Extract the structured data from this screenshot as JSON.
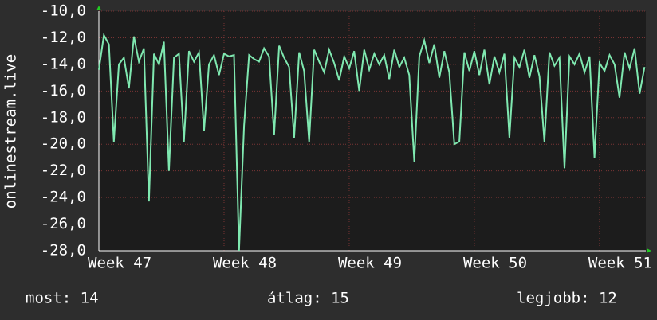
{
  "chart_data": {
    "type": "line",
    "y_label": "onlinestream.live",
    "x": [
      47,
      47.04,
      47.08,
      47.12,
      47.16,
      47.2,
      47.24,
      47.28,
      47.32,
      47.36,
      47.4,
      47.44,
      47.48,
      47.52,
      47.56,
      47.6,
      47.64,
      47.68,
      47.72,
      47.76,
      47.8,
      47.84,
      47.88,
      47.92,
      47.96,
      48,
      48.04,
      48.08,
      48.12,
      48.16,
      48.2,
      48.24,
      48.28,
      48.32,
      48.36,
      48.4,
      48.44,
      48.48,
      48.52,
      48.56,
      48.6,
      48.64,
      48.68,
      48.72,
      48.76,
      48.8,
      48.84,
      48.88,
      48.92,
      48.96,
      49,
      49.04,
      49.08,
      49.12,
      49.16,
      49.2,
      49.24,
      49.28,
      49.32,
      49.36,
      49.4,
      49.44,
      49.48,
      49.52,
      49.56,
      49.6,
      49.64,
      49.68,
      49.72,
      49.76,
      49.8,
      49.84,
      49.88,
      49.92,
      49.96,
      50,
      50.04,
      50.08,
      50.12,
      50.16,
      50.2,
      50.24,
      50.28,
      50.32,
      50.36,
      50.4,
      50.44,
      50.48,
      50.52,
      50.56,
      50.6,
      50.64,
      50.68,
      50.72,
      50.76,
      50.8,
      50.84,
      50.88,
      50.92,
      50.96,
      51,
      51.04,
      51.08,
      51.12,
      51.16,
      51.2,
      51.24,
      51.28,
      51.32,
      51.36
    ],
    "series": [
      {
        "color": "#7fe8b0",
        "values": [
          -14.4,
          -11.8,
          -12.5,
          -19.8,
          -14.0,
          -13.5,
          -15.8,
          -11.9,
          -13.8,
          -12.8,
          -24.3,
          -13.2,
          -14.0,
          -12.3,
          -22.0,
          -13.5,
          -13.2,
          -19.8,
          -13.0,
          -13.8,
          -13.1,
          -19.0,
          -14.0,
          -13.3,
          -14.8,
          -13.2,
          -13.4,
          -13.3,
          -28.0,
          -18.6,
          -13.3,
          -13.6,
          -13.8,
          -12.8,
          -13.4,
          -19.3,
          -12.6,
          -13.5,
          -14.2,
          -19.5,
          -13.1,
          -14.5,
          -19.8,
          -12.9,
          -13.8,
          -14.6,
          -12.9,
          -13.9,
          -15.2,
          -13.4,
          -14.3,
          -13.0,
          -16.0,
          -12.9,
          -14.4,
          -13.2,
          -14.0,
          -13.3,
          -15.1,
          -12.9,
          -14.2,
          -13.5,
          -14.8,
          -21.3,
          -13.4,
          -12.2,
          -13.9,
          -12.5,
          -15.0,
          -13.0,
          -14.6,
          -20.0,
          -19.8,
          -13.1,
          -14.5,
          -13.0,
          -14.8,
          -12.9,
          -15.5,
          -13.4,
          -14.6,
          -13.2,
          -19.5,
          -13.5,
          -14.2,
          -12.9,
          -15.0,
          -13.3,
          -14.9,
          -19.8,
          -13.1,
          -14.1,
          -13.5,
          -21.8,
          -13.4,
          -14.0,
          -13.2,
          -14.6,
          -13.4,
          -21.0,
          -13.9,
          -14.5,
          -13.3,
          -14.0,
          -16.5,
          -13.1,
          -14.3,
          -12.8,
          -16.2,
          -14.2
        ]
      }
    ],
    "xlim": [
      47,
      51.37
    ],
    "xticks": [
      {
        "value": 47,
        "label": "Week 47"
      },
      {
        "value": 48,
        "label": "Week 48"
      },
      {
        "value": 49,
        "label": "Week 49"
      },
      {
        "value": 50,
        "label": "Week 50"
      },
      {
        "value": 51,
        "label": "Week 51"
      }
    ],
    "ylim": [
      -28,
      -10
    ],
    "yticks": [
      {
        "value": -10,
        "label": "-10,0"
      },
      {
        "value": -12,
        "label": "-12,0"
      },
      {
        "value": -14,
        "label": "-14,0"
      },
      {
        "value": -16,
        "label": "-16,0"
      },
      {
        "value": -18,
        "label": "-18,0"
      },
      {
        "value": -20,
        "label": "-20,0"
      },
      {
        "value": -22,
        "label": "-22,0"
      },
      {
        "value": -24,
        "label": "-24,0"
      },
      {
        "value": -26,
        "label": "-26,0"
      },
      {
        "value": -28,
        "label": "-28,0"
      }
    ],
    "grid": true,
    "footer": [
      "most: 14",
      "átlag: 15",
      "legjobb: 12"
    ]
  }
}
